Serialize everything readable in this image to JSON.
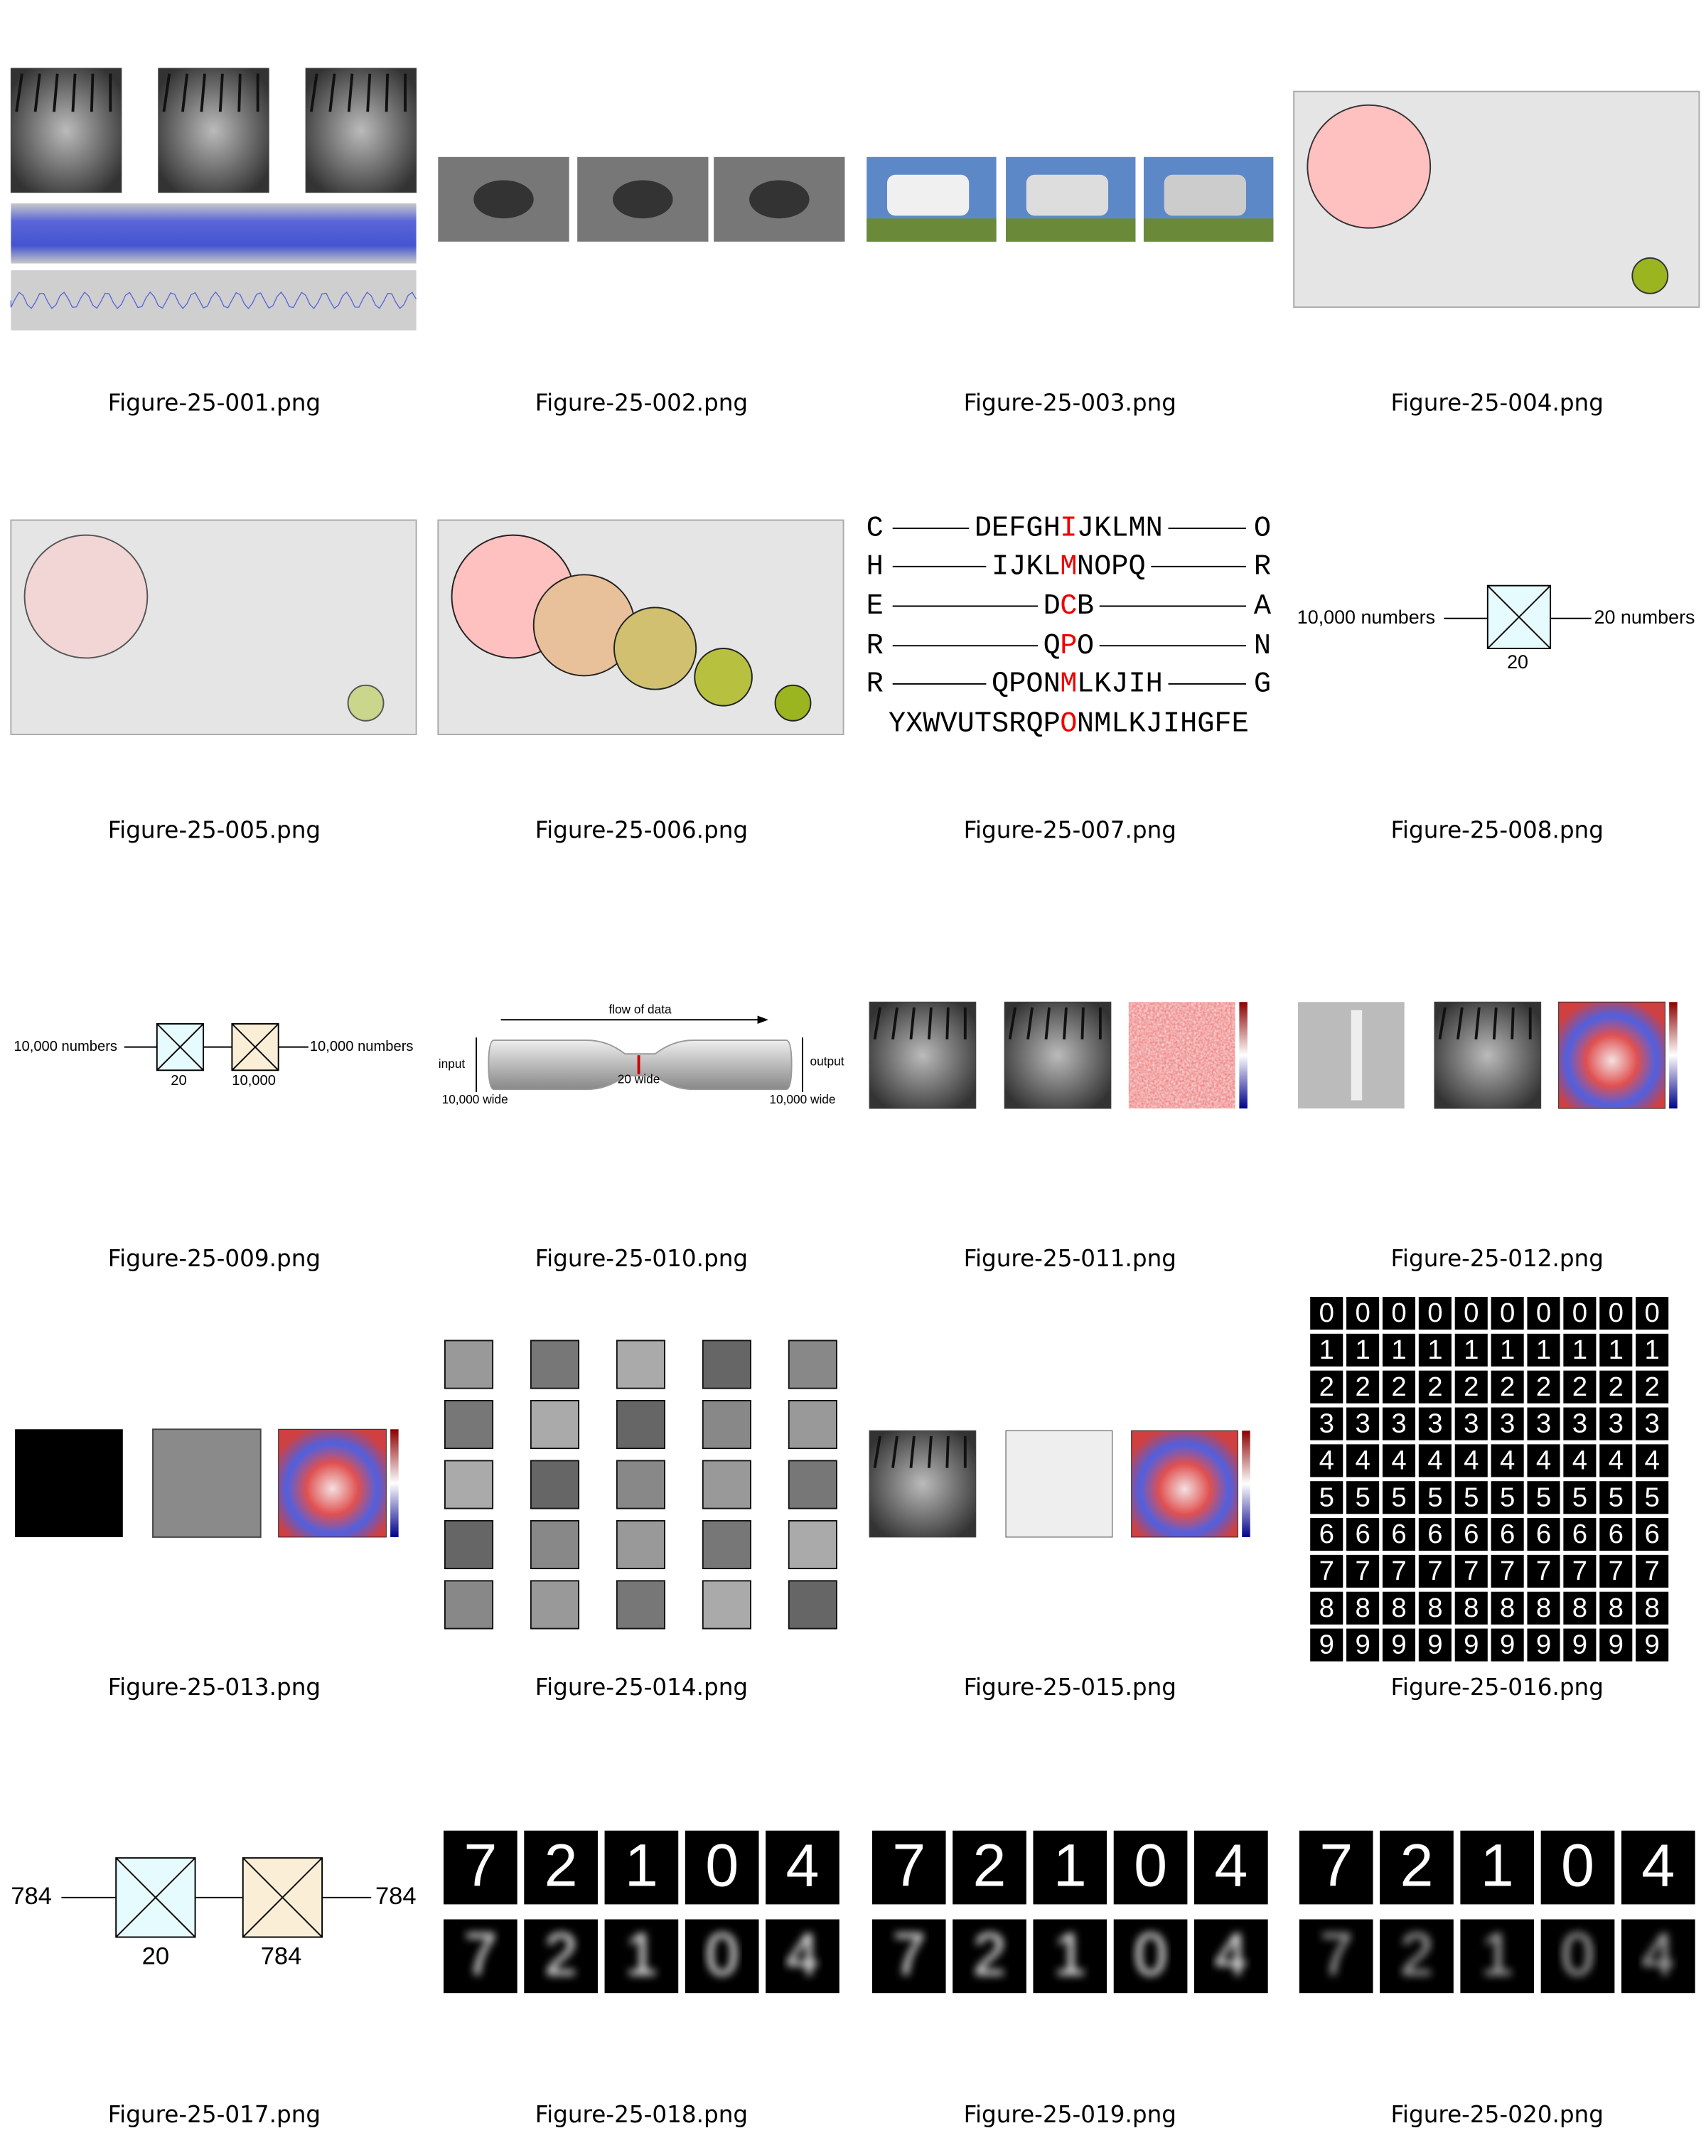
{
  "captions": [
    "Figure-25-001.png",
    "Figure-25-002.png",
    "Figure-25-003.png",
    "Figure-25-004.png",
    "Figure-25-005.png",
    "Figure-25-006.png",
    "Figure-25-007.png",
    "Figure-25-008.png",
    "Figure-25-009.png",
    "Figure-25-010.png",
    "Figure-25-011.png",
    "Figure-25-012.png",
    "Figure-25-013.png",
    "Figure-25-014.png",
    "Figure-25-015.png",
    "Figure-25-016.png",
    "Figure-25-017.png",
    "Figure-25-018.png",
    "Figure-25-019.png",
    "Figure-25-020.png"
  ],
  "fig7": {
    "rows": [
      {
        "left": "C",
        "pre": "DEFGH",
        "mid": "I",
        "post": "JKLMN",
        "right": "O"
      },
      {
        "left": "H",
        "pre": "IJKL",
        "mid": "M",
        "post": "NOPQ",
        "right": "R"
      },
      {
        "left": "E",
        "pre": "D",
        "mid": "C",
        "post": "B",
        "right": "A"
      },
      {
        "left": "R",
        "pre": "Q",
        "mid": "P",
        "post": "O",
        "right": "N"
      },
      {
        "left": "R",
        "pre": "QPON",
        "mid": "M",
        "post": "LKJIH",
        "right": "G"
      }
    ],
    "last": {
      "pre": "YXWVUTSRQP",
      "mid": "O",
      "post": "NMLKJIHGFE"
    }
  },
  "fig8": {
    "input": "10,000 numbers",
    "output": "20 numbers",
    "box": "20"
  },
  "fig9": {
    "input": "10,000 numbers",
    "output": "10,000 numbers",
    "box1": "20",
    "box2": "10,000"
  },
  "fig10": {
    "flow": "flow of data",
    "input": "input",
    "output": "output",
    "left_width": "10,000 wide",
    "neck": "20 wide",
    "right_width": "10,000 wide"
  },
  "fig16": {
    "digits": [
      "0",
      "1",
      "2",
      "3",
      "4",
      "5",
      "6",
      "7",
      "8",
      "9"
    ]
  },
  "fig17": {
    "input": "784",
    "output": "784",
    "box1": "784",
    "box2": "20",
    "box1_label": "20",
    "box2_label": "784"
  },
  "digits": [
    "7",
    "2",
    "1",
    "0",
    "4"
  ]
}
